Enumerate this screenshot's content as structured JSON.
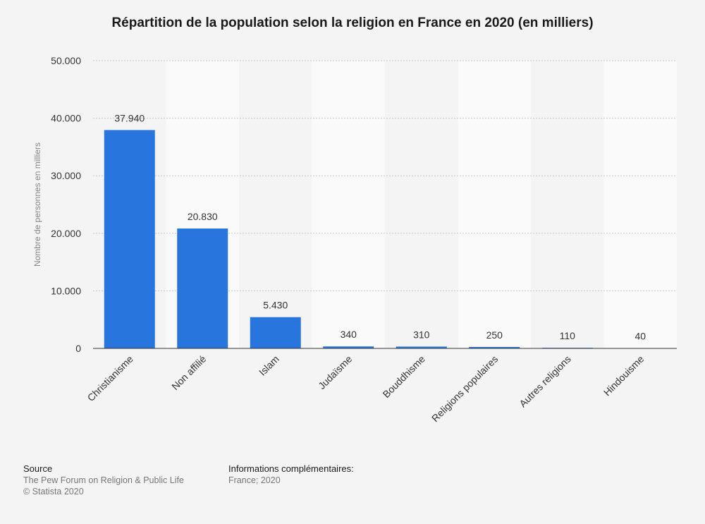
{
  "chart_data": {
    "type": "bar",
    "title": "Répartition de la population selon la religion en France en 2020 (en milliers)",
    "xlabel": "",
    "ylabel": "Nombre de personnes en milliers",
    "ylim": [
      0,
      50000
    ],
    "yticks": [
      0,
      10000,
      20000,
      30000,
      40000,
      50000
    ],
    "ytick_labels": [
      "0",
      "10.000",
      "20.000",
      "30.000",
      "40.000",
      "50.000"
    ],
    "grid": true,
    "categories": [
      "Christianisme",
      "Non affilié",
      "Islam",
      "Judaïsme",
      "Bouddhisme",
      "Religions populaires",
      "Autres religions",
      "Hindouisme"
    ],
    "values": [
      37940,
      20830,
      5430,
      340,
      310,
      250,
      110,
      40
    ],
    "value_labels": [
      "37.940",
      "20.830",
      "5.430",
      "340",
      "310",
      "250",
      "110",
      "40"
    ],
    "bar_color": "#2876dd"
  },
  "footer": {
    "source_heading": "Source",
    "source_line1": "The Pew Forum on Religion & Public Life",
    "source_line2": "© Statista 2020",
    "info_heading": "Informations complémentaires:",
    "info_line1": "France; 2020"
  }
}
